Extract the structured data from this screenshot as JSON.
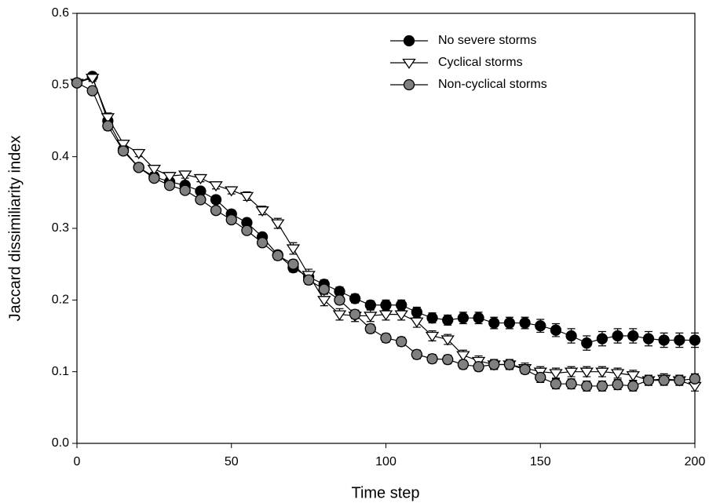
{
  "chart_data": {
    "type": "line",
    "xlabel": "Time step",
    "ylabel": "Jaccard dissimiliarity index",
    "x": [
      0,
      5,
      10,
      15,
      20,
      25,
      30,
      35,
      40,
      45,
      50,
      55,
      60,
      65,
      70,
      75,
      80,
      85,
      90,
      95,
      100,
      105,
      110,
      115,
      120,
      125,
      130,
      135,
      140,
      145,
      150,
      155,
      160,
      165,
      170,
      175,
      180,
      185,
      190,
      195,
      200
    ],
    "xlim": [
      0,
      200
    ],
    "xticks": [
      0,
      50,
      100,
      150,
      200
    ],
    "ylim": [
      0,
      0.6
    ],
    "yticks": [
      {
        "value": 0,
        "label": "0.0"
      },
      0.1,
      0.2,
      0.3,
      0.4,
      0.5,
      0.6
    ],
    "legend": "upper right",
    "series": [
      {
        "name": "No severe storms",
        "color": "#000000",
        "marker": "circle",
        "values": [
          0.503,
          0.512,
          0.45,
          0.41,
          0.385,
          0.372,
          0.365,
          0.36,
          0.352,
          0.34,
          0.32,
          0.308,
          0.288,
          0.263,
          0.245,
          0.232,
          0.222,
          0.212,
          0.202,
          0.193,
          0.193,
          0.193,
          0.183,
          0.175,
          0.172,
          0.175,
          0.175,
          0.168,
          0.168,
          0.168,
          0.164,
          0.158,
          0.15,
          0.14,
          0.146,
          0.15,
          0.15,
          0.146,
          0.144,
          0.144,
          0.144
        ],
        "errors": [
          0.004,
          0.005,
          0.006,
          0.005,
          0.005,
          0.005,
          0.005,
          0.005,
          0.005,
          0.005,
          0.005,
          0.005,
          0.005,
          0.005,
          0.006,
          0.006,
          0.006,
          0.006,
          0.006,
          0.006,
          0.007,
          0.007,
          0.007,
          0.007,
          0.007,
          0.008,
          0.008,
          0.008,
          0.008,
          0.008,
          0.009,
          0.009,
          0.01,
          0.01,
          0.01,
          0.01,
          0.01,
          0.01,
          0.01,
          0.01,
          0.01
        ]
      },
      {
        "name": "Cyclical storms",
        "color": "#ffffff",
        "marker": "triangle-down",
        "values": [
          0.503,
          0.51,
          0.455,
          0.418,
          0.405,
          0.383,
          0.373,
          0.375,
          0.37,
          0.36,
          0.353,
          0.345,
          0.325,
          0.307,
          0.272,
          0.235,
          0.2,
          0.18,
          0.178,
          0.178,
          0.18,
          0.18,
          0.17,
          0.15,
          0.145,
          0.123,
          0.115,
          0.11,
          0.11,
          0.105,
          0.1,
          0.098,
          0.1,
          0.1,
          0.1,
          0.098,
          0.095,
          0.088,
          0.09,
          0.088,
          0.08
        ],
        "errors": [
          0.004,
          0.005,
          0.006,
          0.005,
          0.005,
          0.005,
          0.005,
          0.005,
          0.005,
          0.005,
          0.005,
          0.006,
          0.006,
          0.007,
          0.008,
          0.008,
          0.008,
          0.008,
          0.008,
          0.008,
          0.008,
          0.008,
          0.008,
          0.007,
          0.007,
          0.007,
          0.007,
          0.007,
          0.007,
          0.007,
          0.007,
          0.007,
          0.007,
          0.007,
          0.007,
          0.007,
          0.007,
          0.007,
          0.007,
          0.007,
          0.007
        ]
      },
      {
        "name": "Non-cyclical storms",
        "color": "#808080",
        "marker": "circle",
        "values": [
          0.503,
          0.492,
          0.443,
          0.408,
          0.385,
          0.37,
          0.36,
          0.353,
          0.34,
          0.325,
          0.312,
          0.297,
          0.28,
          0.262,
          0.25,
          0.228,
          0.215,
          0.2,
          0.18,
          0.16,
          0.147,
          0.142,
          0.124,
          0.118,
          0.117,
          0.11,
          0.107,
          0.11,
          0.11,
          0.103,
          0.092,
          0.083,
          0.083,
          0.08,
          0.08,
          0.082,
          0.08,
          0.088,
          0.088,
          0.088,
          0.09
        ],
        "errors": [
          0.004,
          0.005,
          0.006,
          0.005,
          0.005,
          0.005,
          0.005,
          0.005,
          0.005,
          0.005,
          0.005,
          0.005,
          0.005,
          0.006,
          0.006,
          0.006,
          0.006,
          0.006,
          0.006,
          0.006,
          0.006,
          0.006,
          0.006,
          0.006,
          0.006,
          0.006,
          0.006,
          0.006,
          0.006,
          0.006,
          0.007,
          0.007,
          0.007,
          0.007,
          0.007,
          0.007,
          0.007,
          0.007,
          0.007,
          0.007,
          0.007
        ]
      }
    ]
  }
}
